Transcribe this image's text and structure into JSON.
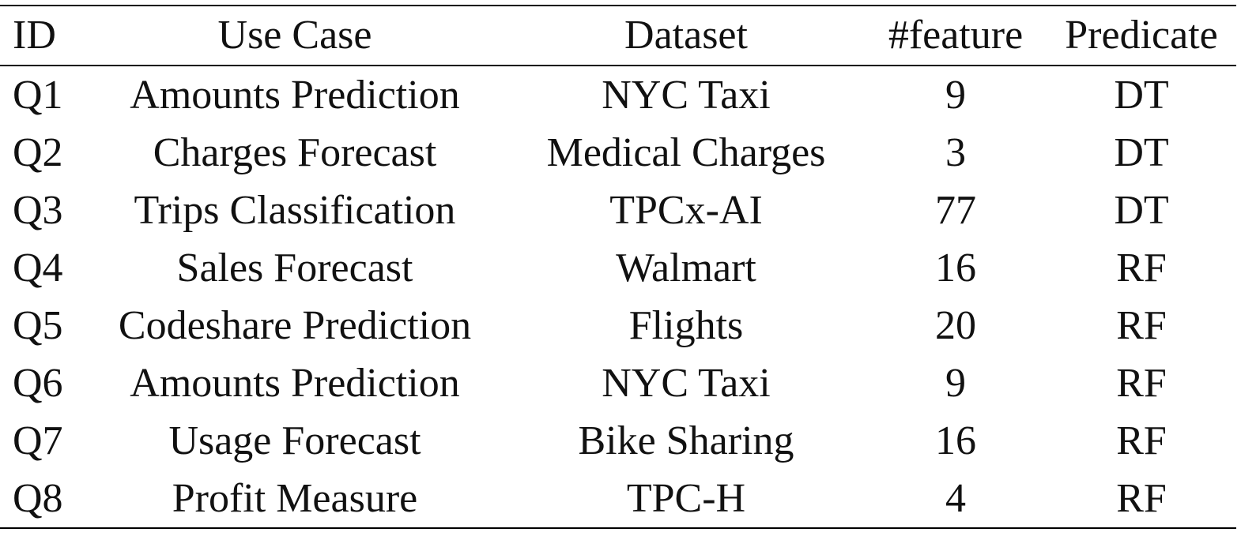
{
  "table": {
    "headers": [
      "ID",
      "Use Case",
      "Dataset",
      "#feature",
      "Predicate"
    ],
    "rows": [
      [
        "Q1",
        "Amounts Prediction",
        "NYC Taxi",
        "9",
        "DT"
      ],
      [
        "Q2",
        "Charges Forecast",
        "Medical Charges",
        "3",
        "DT"
      ],
      [
        "Q3",
        "Trips Classification",
        "TPCx-AI",
        "77",
        "DT"
      ],
      [
        "Q4",
        "Sales Forecast",
        "Walmart",
        "16",
        "RF"
      ],
      [
        "Q5",
        "Codeshare Prediction",
        "Flights",
        "20",
        "RF"
      ],
      [
        "Q6",
        "Amounts Prediction",
        "NYC Taxi",
        "9",
        "RF"
      ],
      [
        "Q7",
        "Usage Forecast",
        "Bike Sharing",
        "16",
        "RF"
      ],
      [
        "Q8",
        "Profit Measure",
        "TPC-H",
        "4",
        "RF"
      ]
    ]
  }
}
